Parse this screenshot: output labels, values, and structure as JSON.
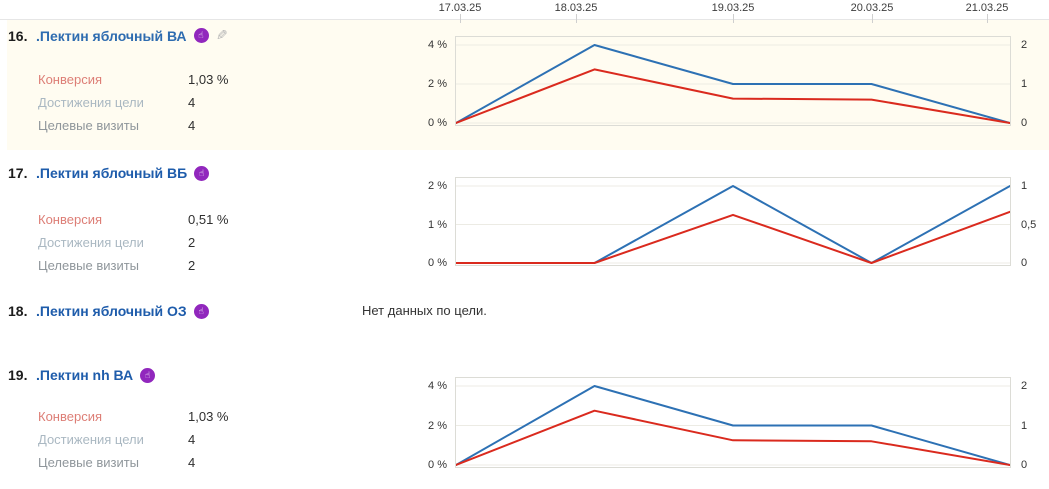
{
  "header": {
    "dates": [
      "17.03.25",
      "18.03.25",
      "19.03.25",
      "20.03.25",
      "21.03.25"
    ]
  },
  "metric_labels": {
    "conversion": "Конверсия",
    "goal_reaches": "Достижения цели",
    "goal_visits": "Целевые визиты"
  },
  "icons": {
    "goal_icon": "retargeting-goal-hand",
    "goal_icon_glyph": "☝",
    "edit_icon_glyph": "✎"
  },
  "rows": [
    {
      "num": "16.",
      "title": ".Пектин яблочный ВА",
      "highlighted": true,
      "metrics": {
        "conversion": "1,03 %",
        "goal_reaches": "4",
        "goal_visits": "4"
      }
    },
    {
      "num": "17.",
      "title": ".Пектин яблочный ВБ",
      "highlighted": false,
      "metrics": {
        "conversion": "0,51 %",
        "goal_reaches": "2",
        "goal_visits": "2"
      }
    },
    {
      "num": "18.",
      "title": ".Пектин яблочный ОЗ",
      "highlighted": false,
      "no_data": "Нет данных по цели."
    },
    {
      "num": "19.",
      "title": ".Пектин nh ВА",
      "highlighted": false,
      "metrics": {
        "conversion": "1,03 %",
        "goal_reaches": "4",
        "goal_visits": "4"
      }
    }
  ],
  "colors": {
    "link_blue": "#1e5cab",
    "conversion_label_red": "#dd7e76",
    "line_blue": "#2d71b4",
    "line_red": "#da2a1e",
    "row_highlight": "#fffcf1",
    "goal_icon_purple": "#9127bd"
  },
  "chart_data": [
    {
      "type": "line",
      "row_title": ".Пектин яблочный ВА",
      "x": [
        "17.03.25",
        "18.03.25",
        "19.03.25",
        "20.03.25",
        "21.03.25"
      ],
      "left_axis": {
        "label": "Конверсия",
        "ticks": [
          "0 %",
          "2 %",
          "4 %"
        ],
        "max": 4
      },
      "right_axis": {
        "label": "Достижения цели",
        "ticks": [
          "0",
          "1",
          "2"
        ],
        "max": 2
      },
      "grid": true,
      "series": [
        {
          "name": "Достижения цели",
          "axis": "right",
          "color": "#2d71b4",
          "values": [
            0,
            2,
            1,
            1,
            0
          ]
        },
        {
          "name": "Конверсия",
          "axis": "left",
          "color": "#da2a1e",
          "values": [
            0,
            2.75,
            1.25,
            1.2,
            0
          ]
        }
      ]
    },
    {
      "type": "line",
      "row_title": ".Пектин яблочный ВБ",
      "x": [
        "17.03.25",
        "18.03.25",
        "19.03.25",
        "20.03.25",
        "21.03.25"
      ],
      "left_axis": {
        "label": "Конверсия",
        "ticks": [
          "0 %",
          "1 %",
          "2 %"
        ],
        "max": 2
      },
      "right_axis": {
        "label": "Достижения цели",
        "ticks": [
          "0",
          "0,5",
          "1"
        ],
        "max": 1
      },
      "grid": true,
      "series": [
        {
          "name": "Достижения цели",
          "axis": "right",
          "color": "#2d71b4",
          "values": [
            0,
            0,
            1,
            0,
            1
          ]
        },
        {
          "name": "Конверсия",
          "axis": "left",
          "color": "#da2a1e",
          "values": [
            0,
            0,
            1.25,
            0,
            1.33
          ]
        }
      ]
    },
    {
      "type": "line",
      "row_title": ".Пектин nh ВА",
      "x": [
        "17.03.25",
        "18.03.25",
        "19.03.25",
        "20.03.25",
        "21.03.25"
      ],
      "left_axis": {
        "label": "Конверсия",
        "ticks": [
          "0 %",
          "2 %",
          "4 %"
        ],
        "max": 4
      },
      "right_axis": {
        "label": "Достижения цели",
        "ticks": [
          "0",
          "1",
          "2"
        ],
        "max": 2
      },
      "grid": true,
      "series": [
        {
          "name": "Достижения цели",
          "axis": "right",
          "color": "#2d71b4",
          "values": [
            0,
            2,
            1,
            1,
            0
          ]
        },
        {
          "name": "Конверсия",
          "axis": "left",
          "color": "#da2a1e",
          "values": [
            0,
            2.75,
            1.25,
            1.2,
            0
          ]
        }
      ]
    }
  ]
}
